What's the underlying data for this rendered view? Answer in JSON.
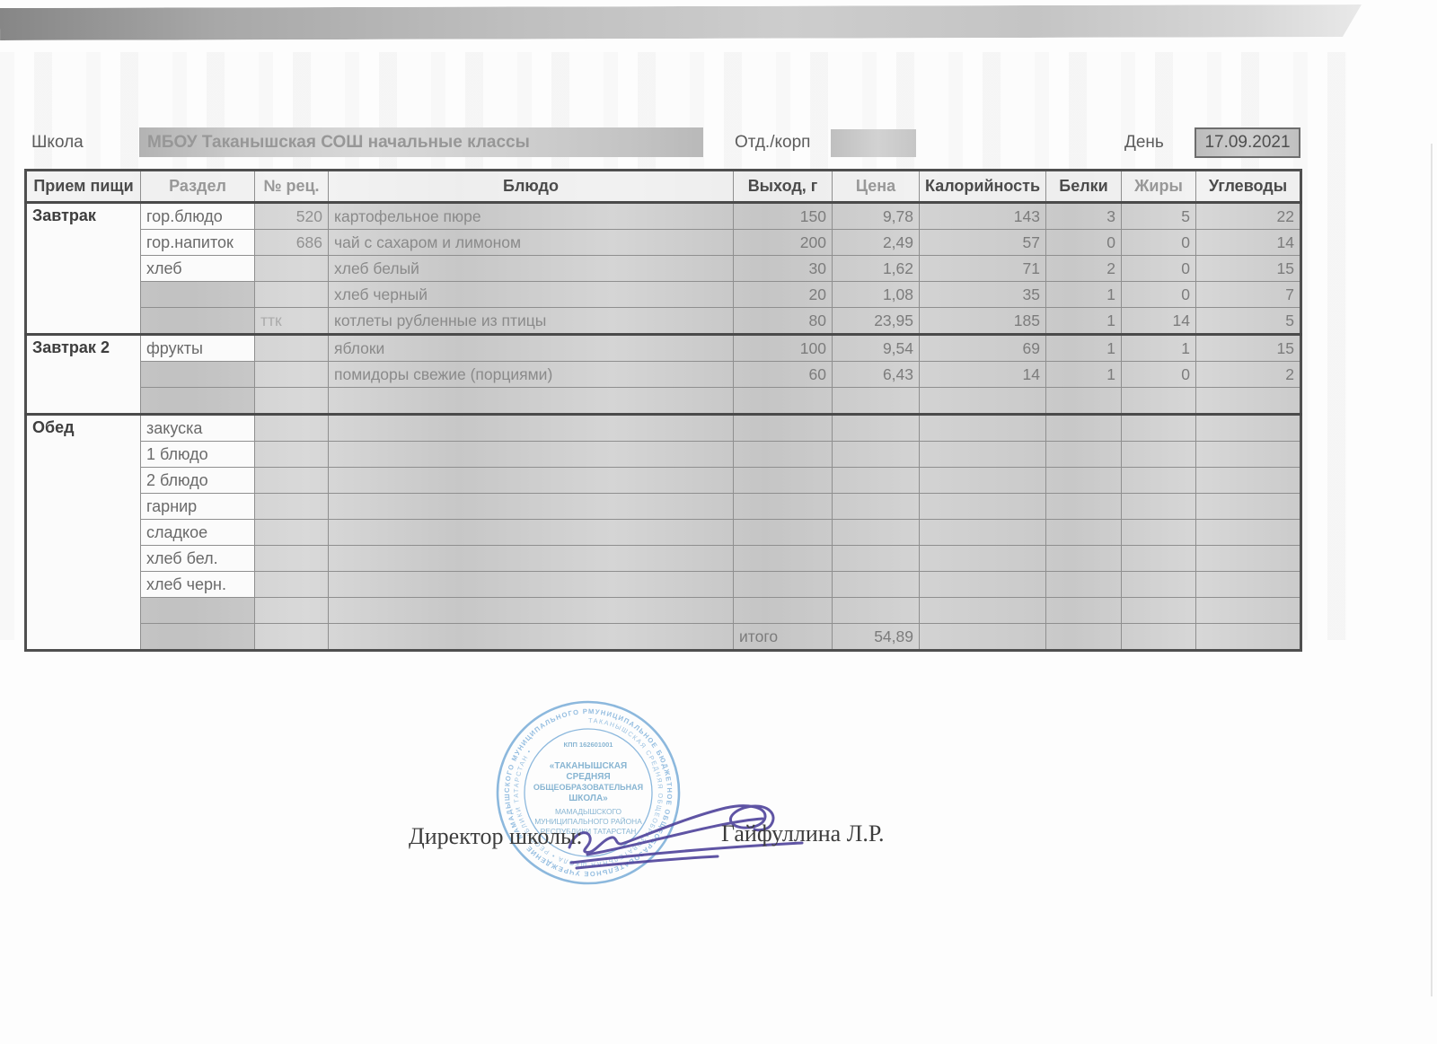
{
  "header": {
    "school_label": "Школа",
    "school_value": "МБОУ Таканышская СОШ  начальные классы",
    "dept_label": "Отд./корп",
    "day_label": "День",
    "day_value": "17.09.2021"
  },
  "table": {
    "columns": [
      "Прием пищи",
      "Раздел",
      "№ рец.",
      "Блюдо",
      "Выход, г",
      "Цена",
      "Калорийность",
      "Белки",
      "Жиры",
      "Углеводы"
    ],
    "rows": [
      {
        "meal": "Завтрак",
        "section": "гор.блюдо",
        "rec": "520",
        "dish": "картофельное пюре",
        "out": "150",
        "price": "9,78",
        "cal": "143",
        "prot": "3",
        "fat": "5",
        "carb": "22"
      },
      {
        "section": "гор.напиток",
        "rec": "686",
        "dish": "чай с сахаром и лимоном",
        "out": "200",
        "price": "2,49",
        "cal": "57",
        "prot": "0",
        "fat": "0",
        "carb": "14"
      },
      {
        "section": "хлеб",
        "rec": "",
        "dish": "хлеб белый",
        "out": "30",
        "price": "1,62",
        "cal": "71",
        "prot": "2",
        "fat": "0",
        "carb": "15"
      },
      {
        "section": "",
        "rec": "",
        "dish": "хлеб черный",
        "out": "20",
        "price": "1,08",
        "cal": "35",
        "prot": "1",
        "fat": "0",
        "carb": "7"
      },
      {
        "section": "",
        "rec": "ттк",
        "dish": "котлеты рубленные из птицы",
        "out": "80",
        "price": "23,95",
        "cal": "185",
        "prot": "1",
        "fat": "14",
        "carb": "5"
      },
      {
        "meal": "Завтрак 2",
        "section": "фрукты",
        "rec": "",
        "dish": "яблоки",
        "out": "100",
        "price": "9,54",
        "cal": "69",
        "prot": "1",
        "fat": "1",
        "carb": "15"
      },
      {
        "section": "",
        "rec": "",
        "dish": "помидоры свежие (порциями)",
        "out": "60",
        "price": "6,43",
        "cal": "14",
        "prot": "1",
        "fat": "0",
        "carb": "2"
      },
      {
        "section": "",
        "rec": "",
        "dish": "",
        "out": "",
        "price": "",
        "cal": "",
        "prot": "",
        "fat": "",
        "carb": ""
      },
      {
        "meal": "Обед",
        "section": "закуска",
        "rec": "",
        "dish": "",
        "out": "",
        "price": "",
        "cal": "",
        "prot": "",
        "fat": "",
        "carb": ""
      },
      {
        "section": "1 блюдо",
        "rec": "",
        "dish": "",
        "out": "",
        "price": "",
        "cal": "",
        "prot": "",
        "fat": "",
        "carb": ""
      },
      {
        "section": "2 блюдо",
        "rec": "",
        "dish": "",
        "out": "",
        "price": "",
        "cal": "",
        "prot": "",
        "fat": "",
        "carb": ""
      },
      {
        "section": "гарнир",
        "rec": "",
        "dish": "",
        "out": "",
        "price": "",
        "cal": "",
        "prot": "",
        "fat": "",
        "carb": ""
      },
      {
        "section": "сладкое",
        "rec": "",
        "dish": "",
        "out": "",
        "price": "",
        "cal": "",
        "prot": "",
        "fat": "",
        "carb": ""
      },
      {
        "section": "хлеб бел.",
        "rec": "",
        "dish": "",
        "out": "",
        "price": "",
        "cal": "",
        "prot": "",
        "fat": "",
        "carb": ""
      },
      {
        "section": "хлеб черн.",
        "rec": "",
        "dish": "",
        "out": "",
        "price": "",
        "cal": "",
        "prot": "",
        "fat": "",
        "carb": ""
      },
      {
        "section": "",
        "rec": "",
        "dish": "",
        "out": "",
        "price": "",
        "cal": "",
        "prot": "",
        "fat": "",
        "carb": ""
      },
      {
        "section": "",
        "rec": "",
        "dish": "",
        "out": "итого",
        "price": "54,89",
        "cal": "",
        "prot": "",
        "fat": "",
        "carb": ""
      }
    ]
  },
  "footer": {
    "director_label": "Директор школы:",
    "director_name": "Гайфуллина Л.Р.",
    "stamp": {
      "kpp": "КПП 162601001",
      "ring_outer": "МУНИЦИПАЛЬНОЕ БЮДЖЕТНОЕ ОБЩЕОБРАЗОВАТЕЛЬНОЕ УЧРЕЖДЕНИЕ • МАМАДЫШСКОГО МУНИЦИПАЛЬНОГО РАЙОНА •",
      "ring_inner": "ТАКАНЫШСКАЯ СРЕДНЯЯ ОБЩЕОБРАЗОВАТЕЛЬНАЯ ШКОЛА • РЕСПУБЛИКИ ТАТАРСТАН •",
      "center_lines": [
        "«ТАКАНЫШСКАЯ",
        "СРЕДНЯЯ",
        "ОБЩЕОБРАЗОВАТЕЛЬНАЯ",
        "ШКОЛА»",
        "МАМАДЫШСКОГО",
        "МУНИЦИПАЛЬНОГО РАЙОНА",
        "РЕСПУБЛИКИ ТАТАРСТАН"
      ]
    }
  },
  "colors": {
    "stamp_blue": "#7dafd9",
    "signature_ink": "#4a3d98"
  }
}
